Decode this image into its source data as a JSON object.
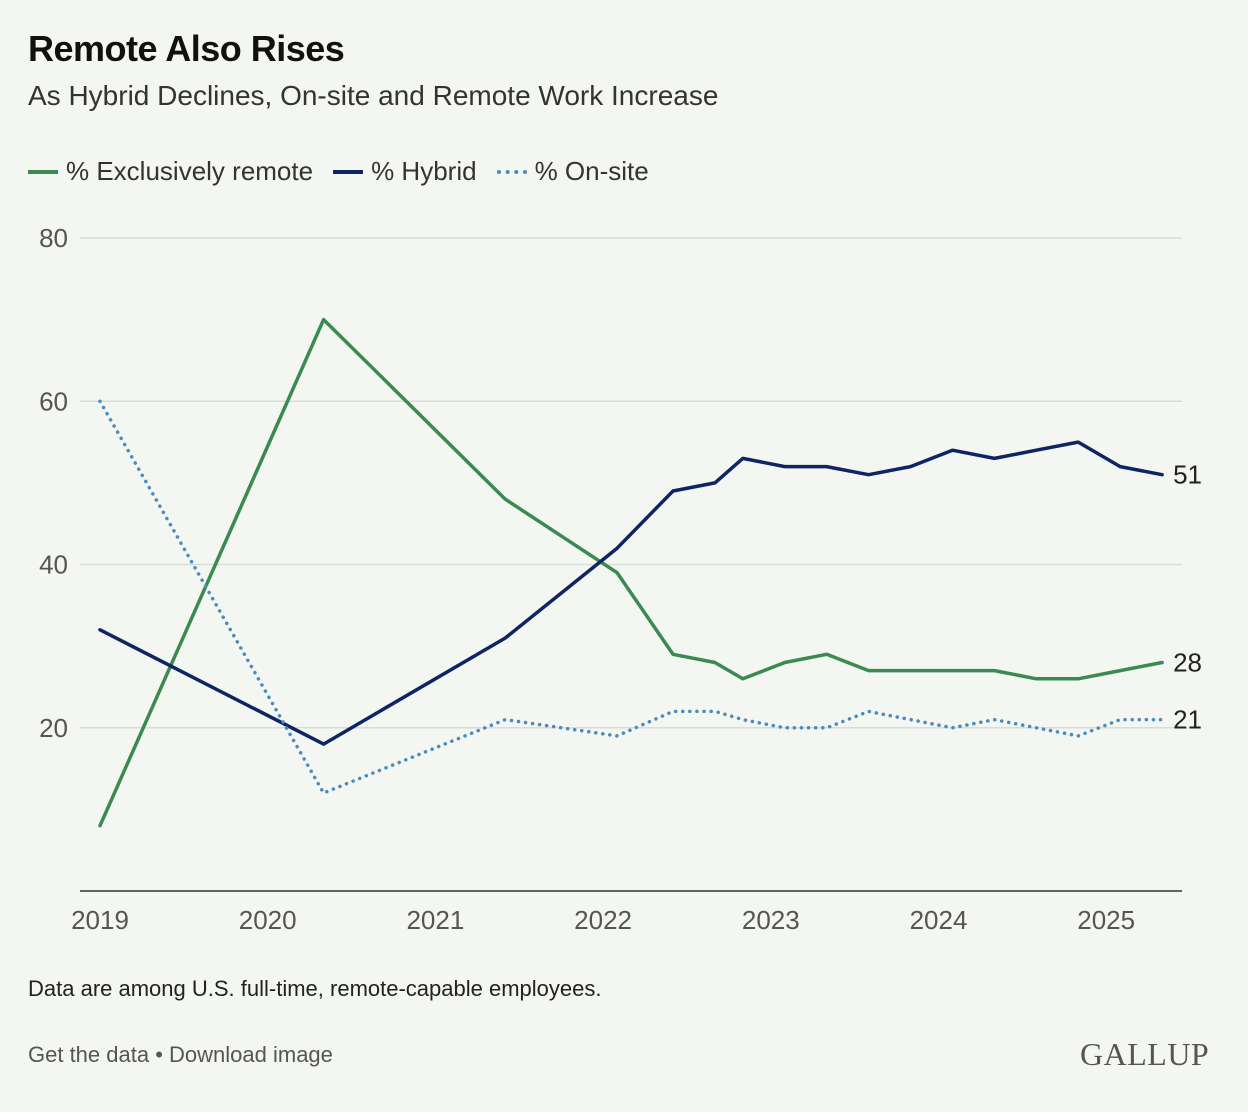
{
  "chart_data": {
    "type": "line",
    "title": "Remote Also Rises",
    "subtitle": "As Hybrid Declines, On-site and Remote Work Increase",
    "xlabel": "",
    "ylabel": "",
    "ylim": [
      0,
      80
    ],
    "yticks": [
      "20",
      "40",
      "60",
      "80"
    ],
    "xticks": [
      "2019",
      "2020",
      "2021",
      "2022",
      "2023",
      "2024",
      "2025"
    ],
    "grid": true,
    "legend_position": "top-left",
    "x": [
      "2019-01",
      "2020-05",
      "2021-06",
      "2022-02",
      "2022-06",
      "2022-09",
      "2022-11",
      "2023-02",
      "2023-05",
      "2023-08",
      "2023-11",
      "2024-02",
      "2024-05",
      "2024-08",
      "2024-11",
      "2025-02",
      "2025-05"
    ],
    "series": [
      {
        "name": "% Exclusively remote",
        "color": "#3a8a52",
        "style": "solid",
        "end_label": "28",
        "values": [
          8,
          70,
          48,
          39,
          29,
          28,
          26,
          28,
          29,
          27,
          27,
          27,
          27,
          26,
          26,
          27,
          28
        ]
      },
      {
        "name": "% Hybrid",
        "color": "#0f2462",
        "style": "solid",
        "end_label": "51",
        "values": [
          32,
          18,
          31,
          42,
          49,
          50,
          53,
          52,
          52,
          51,
          52,
          54,
          53,
          54,
          55,
          52,
          51
        ]
      },
      {
        "name": "% On-site",
        "color": "#4a8bc0",
        "style": "dotted",
        "end_label": "21",
        "values": [
          60,
          12,
          21,
          19,
          22,
          22,
          21,
          20,
          20,
          22,
          21,
          20,
          21,
          20,
          19,
          21,
          21
        ]
      }
    ]
  },
  "note": "Data are among U.S. full-time, remote-capable employees.",
  "links": {
    "get_data": "Get the data",
    "separator": " • ",
    "download": "Download image"
  },
  "logo": "GALLUP"
}
